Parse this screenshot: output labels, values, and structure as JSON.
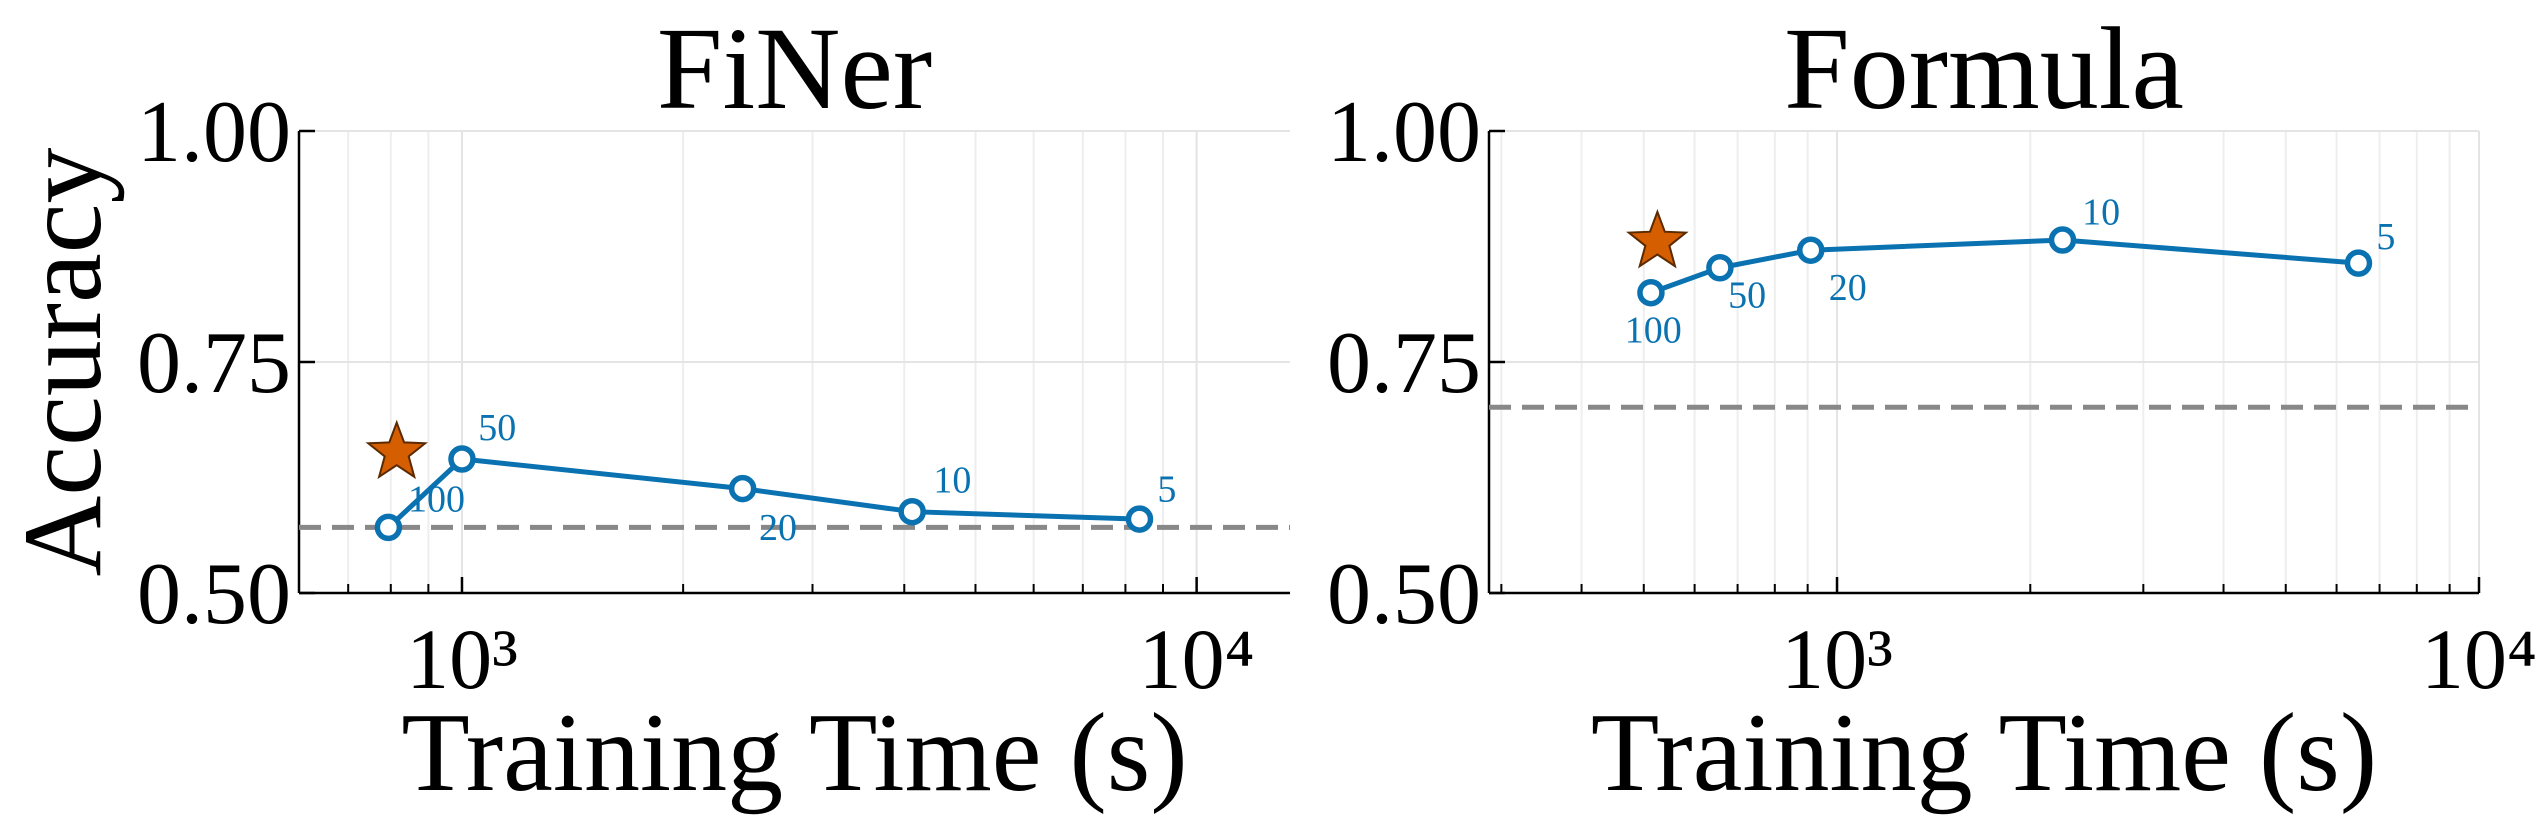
{
  "chart_data": [
    {
      "type": "line",
      "title": "FiNer",
      "xlabel": "Training Time (s)",
      "ylabel": "Accuracy",
      "log_x": true,
      "grid": true,
      "xlim": [
        600,
        13400
      ],
      "ylim": [
        0.5,
        1.0
      ],
      "xticks": [
        {
          "value": 1000,
          "label": "10³"
        },
        {
          "value": 10000,
          "label": "10⁴"
        }
      ],
      "xminorticks": [
        600,
        700,
        800,
        900,
        2000,
        3000,
        4000,
        5000,
        6000,
        7000,
        8000,
        9000
      ],
      "yticks": [
        {
          "value": 0.5,
          "label": "0.50"
        },
        {
          "value": 0.75,
          "label": "0.75"
        },
        {
          "value": 1.0,
          "label": "1.00"
        }
      ],
      "series": [
        {
          "color": "#0a72b0",
          "x": [
            794,
            1000,
            2410,
            4100,
            8360
          ],
          "values": [
            0.571,
            0.645,
            0.613,
            0.588,
            0.58
          ],
          "point_labels": [
            "100",
            "50",
            "20",
            "10",
            "5"
          ]
        }
      ],
      "star_point": {
        "x": 815,
        "y": 0.652,
        "color": "#d55e00"
      },
      "reference_line": {
        "value": 0.571,
        "color": "#888888"
      }
    },
    {
      "type": "line",
      "title": "Formula",
      "xlabel": "Training Time (s)",
      "log_x": true,
      "grid": true,
      "xlim": [
        287,
        10000
      ],
      "ylim": [
        0.5,
        1.0
      ],
      "xticks": [
        {
          "value": 1000,
          "label": "10³"
        },
        {
          "value": 10000,
          "label": "10⁴"
        }
      ],
      "xminorticks": [
        300,
        400,
        500,
        600,
        700,
        800,
        900,
        2000,
        3000,
        4000,
        5000,
        6000,
        7000,
        8000,
        9000
      ],
      "yticks": [
        {
          "value": 0.5,
          "label": "0.50"
        },
        {
          "value": 0.75,
          "label": "0.75"
        },
        {
          "value": 1.0,
          "label": "1.00"
        }
      ],
      "series": [
        {
          "color": "#0a72b0",
          "x": [
            513,
            657,
            910,
            2245,
            6490
          ],
          "values": [
            0.825,
            0.852,
            0.871,
            0.882,
            0.857
          ],
          "point_labels": [
            "100",
            "50",
            "20",
            "10",
            "5"
          ]
        }
      ],
      "star_point": {
        "x": 525,
        "y": 0.88,
        "color": "#d55e00"
      },
      "reference_line": {
        "value": 0.701,
        "color": "#888888"
      }
    }
  ]
}
